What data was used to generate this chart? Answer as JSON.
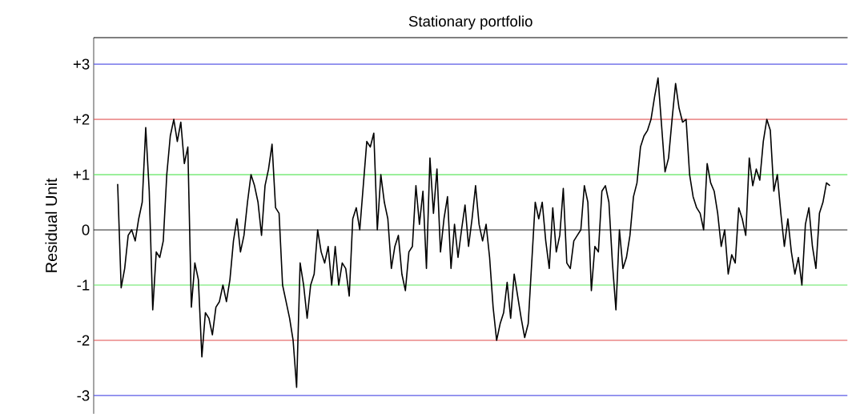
{
  "chart_data": {
    "type": "line",
    "title": "Stationary portfolio",
    "ylabel": "Residual Unit",
    "categories": [
      null,
      null,
      null,
      null,
      null,
      null,
      null,
      null,
      null,
      null,
      null,
      null,
      null,
      null,
      null,
      null,
      null,
      null,
      null,
      null,
      null,
      null,
      null,
      null,
      null,
      null,
      null,
      null,
      null,
      null,
      null,
      null,
      null,
      null,
      null,
      null,
      null,
      null,
      null,
      null,
      null,
      null,
      null,
      null,
      null,
      null,
      null,
      null,
      null,
      null,
      null,
      null,
      null,
      null,
      null,
      null,
      null,
      null,
      null,
      null,
      null,
      null,
      null,
      null,
      null,
      null,
      null,
      null,
      null,
      null,
      null,
      null,
      null,
      null,
      null,
      null,
      null,
      null,
      null,
      null,
      null,
      null,
      null,
      null,
      null,
      null,
      null,
      null,
      null,
      null,
      null,
      null,
      null,
      null,
      null,
      null,
      null,
      null,
      null,
      null,
      null,
      null,
      null,
      null,
      null,
      null,
      null,
      null,
      null,
      null,
      null,
      null,
      null,
      null,
      null,
      null,
      null,
      null,
      null,
      null,
      null,
      null,
      null,
      null,
      null,
      null,
      null,
      null,
      null,
      null,
      null,
      null,
      null,
      null,
      null,
      null,
      null,
      null,
      null,
      null,
      null,
      null,
      null,
      null,
      null,
      null,
      null,
      null,
      null,
      null,
      null,
      null,
      null,
      null,
      null,
      null,
      null,
      null,
      null,
      null,
      null,
      null,
      null,
      null,
      null,
      null,
      null,
      null,
      null,
      null,
      null,
      null,
      null,
      null,
      null,
      null,
      null,
      null,
      null,
      null,
      null,
      null,
      null,
      null,
      null,
      null,
      null,
      null,
      null,
      null,
      null,
      null,
      null,
      null,
      null,
      null,
      null,
      null,
      null,
      null,
      null,
      null,
      null,
      null
    ],
    "series": [
      {
        "color": "#000000",
        "values": [
          0.83,
          -1.05,
          -0.7,
          -0.1,
          0.0,
          -0.2,
          0.2,
          0.5,
          1.85,
          0.7,
          -1.45,
          -0.4,
          -0.5,
          -0.2,
          1.0,
          1.7,
          2.0,
          1.6,
          1.95,
          1.2,
          1.5,
          -1.4,
          -0.6,
          -0.9,
          -2.3,
          -1.5,
          -1.6,
          -1.9,
          -1.4,
          -1.3,
          -1.0,
          -1.3,
          -0.9,
          -0.2,
          0.2,
          -0.4,
          -0.1,
          0.5,
          1.0,
          0.8,
          0.5,
          -0.1,
          0.8,
          1.1,
          1.55,
          0.4,
          0.3,
          -1.0,
          -1.3,
          -1.6,
          -2.0,
          -2.85,
          -0.6,
          -1.0,
          -1.6,
          -1.0,
          -0.8,
          0.0,
          -0.4,
          -0.6,
          -0.3,
          -1.0,
          -0.3,
          -1.0,
          -0.6,
          -0.7,
          -1.2,
          0.2,
          0.4,
          0.0,
          0.8,
          1.6,
          1.5,
          1.75,
          0.0,
          1.0,
          0.5,
          0.2,
          -0.7,
          -0.3,
          -0.1,
          -0.8,
          -1.1,
          -0.4,
          -0.3,
          0.8,
          0.1,
          0.7,
          -0.7,
          1.3,
          0.3,
          1.1,
          -0.4,
          0.2,
          0.6,
          -0.7,
          0.1,
          -0.5,
          0.0,
          0.45,
          -0.3,
          0.2,
          0.8,
          0.1,
          -0.2,
          0.1,
          -0.5,
          -1.4,
          -2.0,
          -1.7,
          -1.5,
          -0.95,
          -1.6,
          -0.8,
          -1.2,
          -1.6,
          -1.95,
          -1.7,
          -0.6,
          0.5,
          0.2,
          0.5,
          -0.2,
          -0.7,
          0.4,
          -0.4,
          -0.1,
          0.75,
          -0.6,
          -0.7,
          -0.2,
          -0.1,
          0.0,
          0.8,
          0.5,
          -1.1,
          -0.3,
          -0.4,
          0.7,
          0.8,
          0.5,
          -0.6,
          -1.45,
          0.0,
          -0.7,
          -0.5,
          -0.1,
          0.6,
          0.85,
          1.5,
          1.7,
          1.8,
          2.0,
          2.4,
          2.75,
          1.9,
          1.05,
          1.3,
          2.0,
          2.65,
          2.2,
          1.95,
          2.0,
          1.0,
          0.6,
          0.4,
          0.3,
          0.0,
          1.2,
          0.85,
          0.7,
          0.3,
          -0.3,
          0.0,
          -0.8,
          -0.45,
          -0.6,
          0.4,
          0.2,
          -0.1,
          1.3,
          0.8,
          1.1,
          0.9,
          1.6,
          2.0,
          1.8,
          0.7,
          1.0,
          0.3,
          -0.3,
          0.2,
          -0.4,
          -0.8,
          -0.5,
          -1.0,
          0.1,
          0.4,
          -0.3,
          -0.7,
          0.3,
          0.5,
          0.85,
          0.8
        ]
      }
    ],
    "ylim": [
      -3.33,
      3.48
    ],
    "yticks": [
      {
        "value": 3,
        "label": "+3"
      },
      {
        "value": 2,
        "label": "+2"
      },
      {
        "value": 1,
        "label": "+1"
      },
      {
        "value": 0,
        "label": "0"
      },
      {
        "value": -1,
        "label": "-1"
      },
      {
        "value": -2,
        "label": "-2"
      },
      {
        "value": -3,
        "label": "-3"
      }
    ],
    "ref_lines": [
      {
        "axis": "y",
        "value": 3,
        "color": "#5a5ae6"
      },
      {
        "axis": "y",
        "value": 2,
        "color": "#e04a4a"
      },
      {
        "axis": "y",
        "value": 1,
        "color": "#5ee65e"
      },
      {
        "axis": "y",
        "value": 0,
        "color": "#000000"
      },
      {
        "axis": "y",
        "value": -1,
        "color": "#5ee65e"
      },
      {
        "axis": "y",
        "value": -2,
        "color": "#e04a4a"
      },
      {
        "axis": "y",
        "value": -3,
        "color": "#5a5ae6"
      }
    ]
  }
}
